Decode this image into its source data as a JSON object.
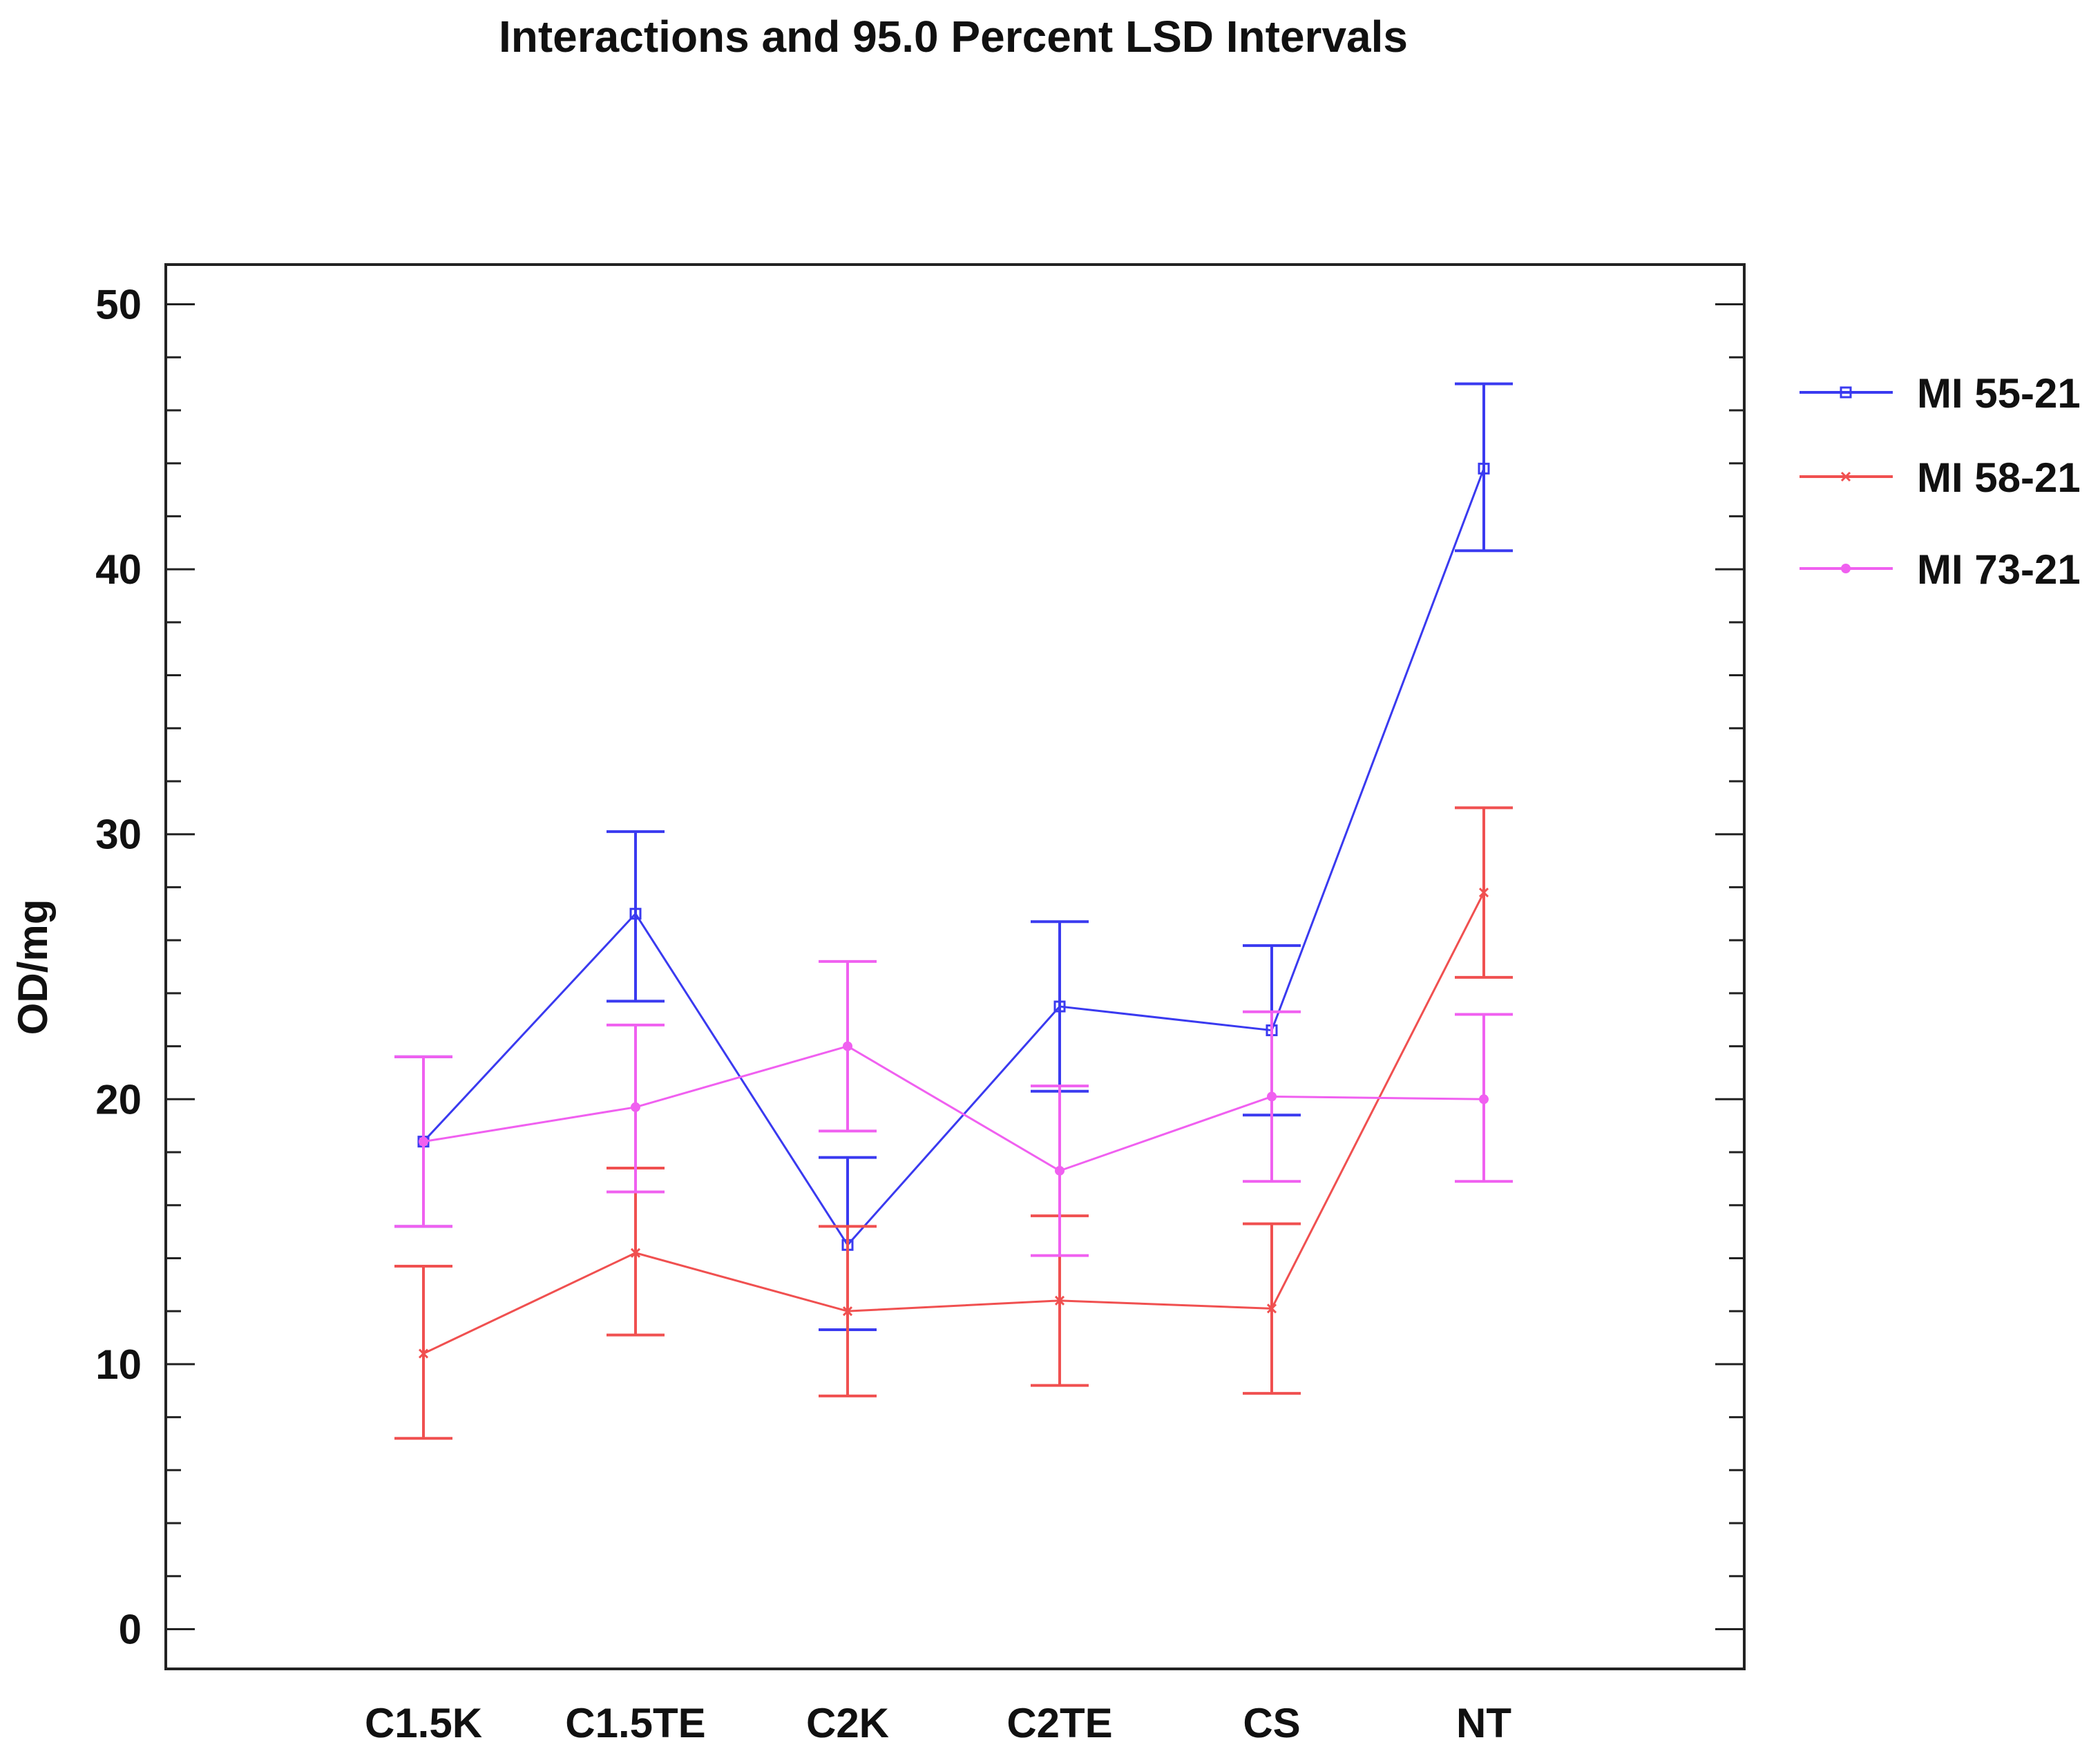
{
  "chart_data": {
    "type": "line",
    "title": "Interactions and 95.0 Percent LSD Intervals",
    "xlabel": "",
    "ylabel": "OD/mg",
    "ylim": [
      -1.5,
      51.5
    ],
    "yticks": [
      0,
      10,
      20,
      30,
      40,
      50
    ],
    "categories": [
      "C1.5K",
      "C1.5TE",
      "C2K",
      "C2TE",
      "CS",
      "NT"
    ],
    "legend_position": "right",
    "series": [
      {
        "name": "MI 55-21",
        "color": "#3a3af0",
        "marker": "square",
        "values": [
          18.4,
          27.0,
          14.5,
          23.5,
          22.6,
          43.8
        ],
        "lower": [
          15.2,
          23.7,
          11.3,
          20.3,
          19.4,
          40.7
        ],
        "upper": [
          21.6,
          30.1,
          17.8,
          26.7,
          25.8,
          47.0
        ]
      },
      {
        "name": "MI 58-21",
        "color": "#f05050",
        "marker": "x",
        "values": [
          10.4,
          14.2,
          12.0,
          12.4,
          12.1,
          27.8
        ],
        "lower": [
          7.2,
          11.1,
          8.8,
          9.2,
          8.9,
          24.6
        ],
        "upper": [
          13.7,
          17.4,
          15.2,
          15.6,
          15.3,
          31.0
        ]
      },
      {
        "name": "MI 73-21",
        "color": "#f060f0",
        "marker": "dot",
        "values": [
          18.4,
          19.7,
          22.0,
          17.3,
          20.1,
          20.0
        ],
        "lower": [
          15.2,
          16.5,
          18.8,
          14.1,
          16.9,
          16.9
        ],
        "upper": [
          21.6,
          22.8,
          25.2,
          20.5,
          23.3,
          23.2
        ]
      }
    ]
  }
}
